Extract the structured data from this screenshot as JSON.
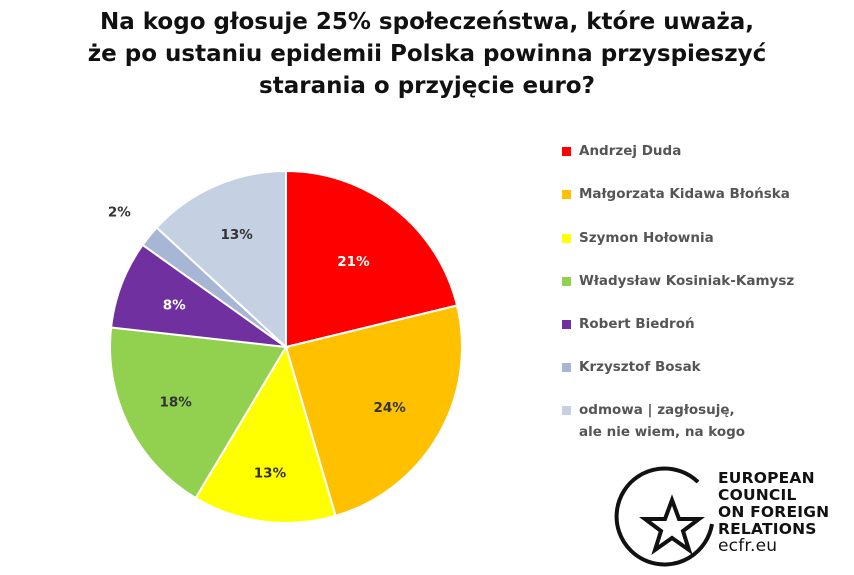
{
  "chart_data": {
    "type": "pie",
    "title_lines": [
      "Na kogo głosuje 25% społeczeństwa, które uważa,",
      "że po ustaniu epidemii Polska powinna przyspieszyć",
      "starania o przyjęcie euro?"
    ],
    "slices": [
      {
        "label": "Andrzej Duda",
        "value": 21,
        "display": "21%",
        "color": "#ff0000",
        "text_color": "#ffffff"
      },
      {
        "label": "Małgorzata Kidawa Błońska",
        "value": 24,
        "display": "24%",
        "color": "#ffc000",
        "text_color": "#333333"
      },
      {
        "label": "Szymon Hołownia",
        "value": 13,
        "display": "13%",
        "color": "#ffff00",
        "text_color": "#333333"
      },
      {
        "label": "Władysław Kosiniak-Kamysz",
        "value": 18,
        "display": "18%",
        "color": "#92d050",
        "text_color": "#333333"
      },
      {
        "label": "Robert Biedroń",
        "value": 8,
        "display": "8%",
        "color": "#7030a0",
        "text_color": "#ffffff"
      },
      {
        "label": "Krzysztof Bosak",
        "value": 2,
        "display": "2%",
        "color": "#a6b6d4",
        "text_color": "#333333"
      },
      {
        "label": "odmowa | zagłosuję, ale nie wiem, na kogo",
        "value": 13,
        "display": "13%",
        "color": "#c5d0e3",
        "text_color": "#333333"
      }
    ],
    "start_angle": "12 o'clock, clockwise",
    "legend_position": "right"
  },
  "legend": [
    {
      "label": "Andrzej Duda",
      "color": "#ff0000"
    },
    {
      "label": "Małgorzata Kidawa Błońska",
      "color": "#ffc000"
    },
    {
      "label": "Szymon Hołownia",
      "color": "#ffff00"
    },
    {
      "label": "Władysław Kosiniak-Kamysz",
      "color": "#92d050"
    },
    {
      "label": "Robert Biedroń",
      "color": "#7030a0"
    },
    {
      "label": "Krzysztof Bosak",
      "color": "#a6b6d4"
    },
    {
      "label": "odmowa | zagłosuję, ale nie wiem, na kogo",
      "color": "#c5d0e3"
    }
  ],
  "logo": {
    "lines": [
      "EUROPEAN",
      "COUNCIL",
      "ON FOREIGN",
      "RELATIONS"
    ],
    "url": "ecfr.eu"
  }
}
